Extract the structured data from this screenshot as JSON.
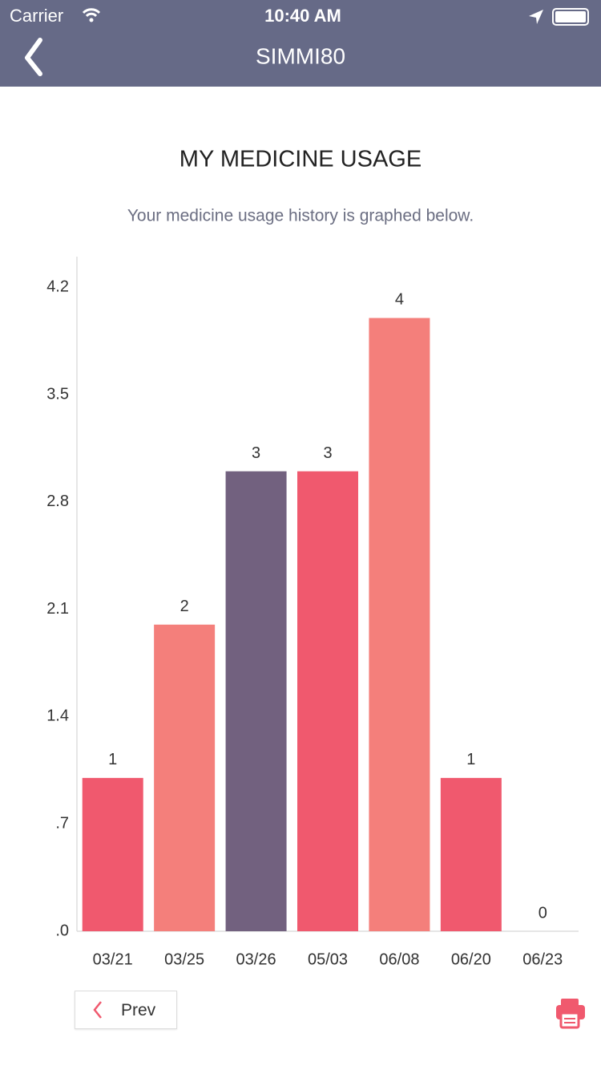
{
  "status_bar": {
    "carrier": "Carrier",
    "time": "10:40 AM"
  },
  "nav": {
    "title": "SIMMI80"
  },
  "chart_data": {
    "type": "bar",
    "title": "MY MEDICINE USAGE",
    "subtitle": "Your medicine usage history is graphed below.",
    "categories": [
      "03/21",
      "03/25",
      "03/26",
      "05/03",
      "06/08",
      "06/20",
      "06/23"
    ],
    "values": [
      1,
      2,
      3,
      3,
      4,
      1,
      0
    ],
    "colors": [
      "#f0596e",
      "#f47f7b",
      "#72617f",
      "#f0596e",
      "#f47f7b",
      "#f0596e",
      "#f47f7b"
    ],
    "ylim": [
      0,
      4.4
    ],
    "yticks": [
      {
        "value": 0,
        "label": ".0"
      },
      {
        "value": 0.7,
        "label": ".7"
      },
      1.4,
      2.1,
      2.8,
      3.5,
      4.2
    ],
    "grid": false
  },
  "buttons": {
    "prev": "Prev"
  }
}
